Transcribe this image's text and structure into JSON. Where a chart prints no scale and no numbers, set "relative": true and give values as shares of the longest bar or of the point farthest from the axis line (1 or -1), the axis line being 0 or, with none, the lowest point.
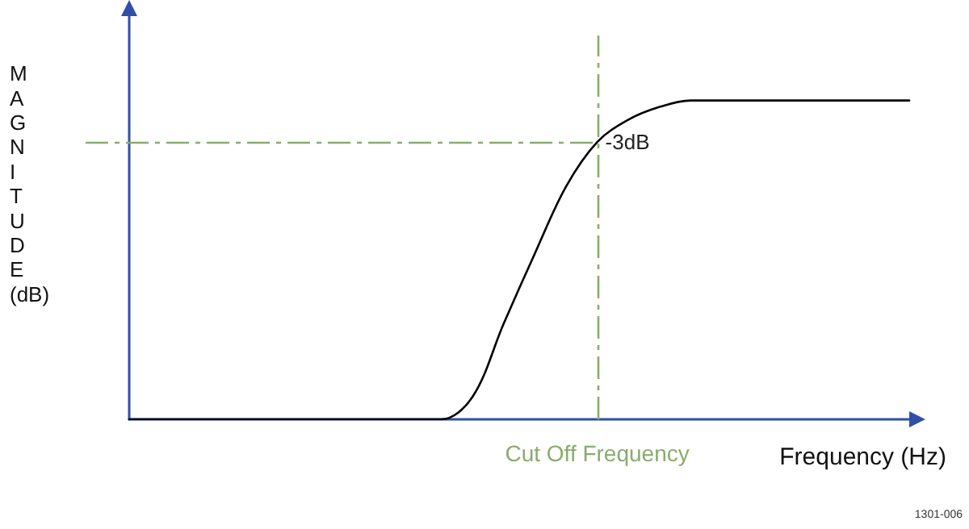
{
  "chart_data": {
    "type": "line",
    "relative": true,
    "xlabel": "Frequency (Hz)",
    "ylabel": "MAGNITUDE (dB)",
    "tick_labels": false,
    "marker": "none",
    "categories": [
      null,
      null,
      null,
      null,
      null,
      null,
      null,
      null,
      null,
      null,
      null,
      null,
      null,
      null,
      null,
      null,
      null,
      null,
      null,
      null,
      null,
      null,
      null,
      null,
      null,
      null
    ],
    "series": [
      {
        "color": "#000000",
        "values": [
          0,
          0,
          0,
          0,
          0,
          0,
          0,
          0,
          0,
          0,
          0,
          0.07,
          0.3,
          0.52,
          0.73,
          0.87,
          0.94,
          0.98,
          1,
          1,
          1,
          1,
          1,
          1,
          1,
          1
        ]
      }
    ],
    "ref_lines": [
      {
        "axis": "y",
        "value": 0.87,
        "label": "-3dB",
        "color": "#8aab6e",
        "line_style": "dashed"
      }
    ],
    "annotations": [
      "Cut Off Frequency",
      "1301-006"
    ]
  }
}
